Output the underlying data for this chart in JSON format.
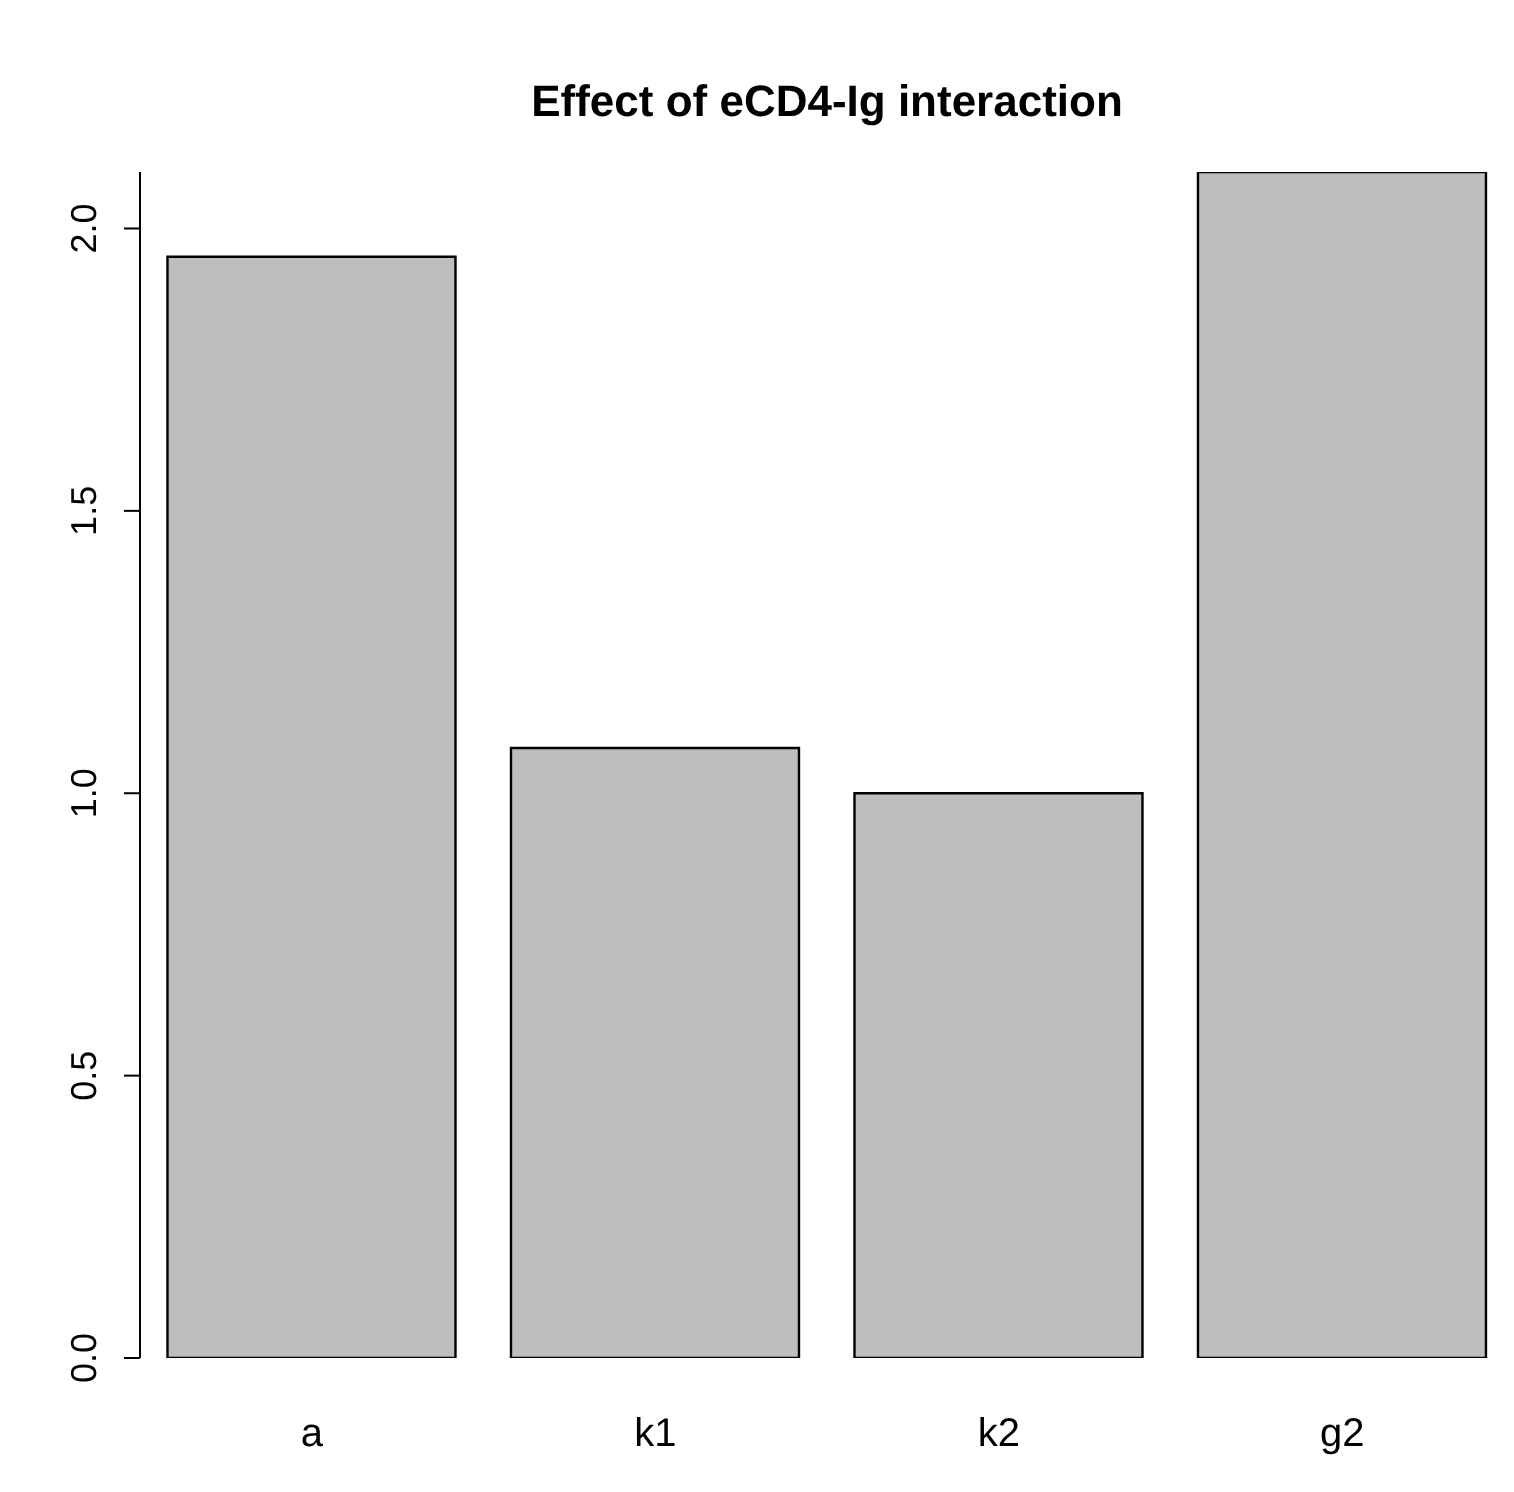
{
  "chart_data": {
    "type": "bar",
    "title": "Effect of eCD4-Ig interaction",
    "categories": [
      "a",
      "k1",
      "k2",
      "g2"
    ],
    "values": [
      1.95,
      1.08,
      1.0,
      2.1
    ],
    "color": "#bebebe",
    "ylim": [
      0,
      2.1
    ],
    "yticks": [
      {
        "value": 0,
        "label": "0.0"
      },
      0.5,
      {
        "value": 1,
        "label": "1.0"
      },
      1.5,
      {
        "value": 2,
        "label": "2.0"
      }
    ]
  }
}
